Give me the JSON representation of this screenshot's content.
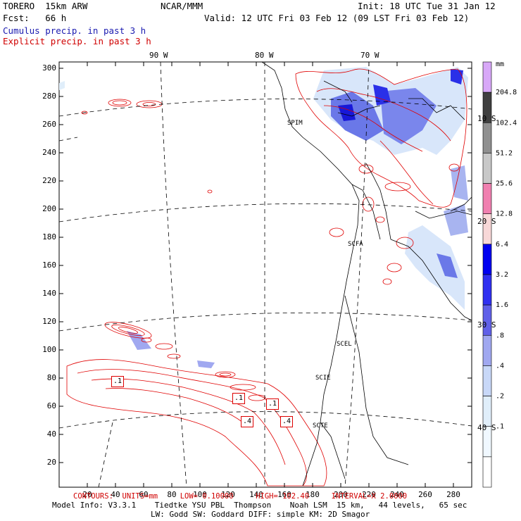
{
  "header": {
    "model": "TORERO  15km ARW",
    "org": "NCAR/MMM",
    "init": "Init: 18 UTC Tue 31 Jan 12",
    "fcst": "Fcst:   66 h",
    "valid": "Valid: 12 UTC Fri 03 Feb 12 (09 LST Fri 03 Feb 12)",
    "legend_cumulus": "Cumulus precip. in past 3 h",
    "legend_explicit": "Explicit precip. in past 3 h"
  },
  "map": {
    "lon_labels": [
      "90 W",
      "80 W",
      "70 W"
    ],
    "lat_labels": [
      "10 S",
      "20 S",
      "30 S",
      "40 S"
    ],
    "y_ticks": [
      "300",
      "280",
      "260",
      "240",
      "220",
      "200",
      "180",
      "160",
      "140",
      "120",
      "100",
      "80",
      "60",
      "40",
      "20"
    ],
    "x_ticks": [
      "20",
      "40",
      "60",
      "80",
      "100",
      "120",
      "140",
      "160",
      "180",
      "200",
      "220",
      "240",
      "260",
      "280"
    ],
    "stations": [
      "SPIM",
      "SCFA",
      "SCEL",
      "SCIE",
      "SCTE"
    ],
    "contour_labels": [
      ".1",
      ".1",
      ".1",
      ".4",
      ".4"
    ],
    "colors": {
      "contour": "#e00000",
      "border": "#000000",
      "graticule": "#000000"
    }
  },
  "colorbar": {
    "unit": "mm",
    "levels": [
      "204.8",
      "102.4",
      "51.2",
      "25.6",
      "12.8",
      "6.4",
      "3.2",
      "1.6",
      ".8",
      ".4",
      ".2",
      ".1"
    ],
    "colors": [
      "#d8a8f8",
      "#404040",
      "#909090",
      "#c8c8c8",
      "#f080b0",
      "#f8d8d8",
      "#0000f0",
      "#3030f0",
      "#6060e8",
      "#a0a8f0",
      "#c8d8f8",
      "#e0eefa",
      "#f0f8ff",
      "#ffffff"
    ]
  },
  "footer": {
    "contours": "CONTOURS:  UNITS=mm     LOW= 0.10000     HIGH= 102.40     INTERVAL=X 2.0000",
    "model_info": "Model Info: V3.3.1    Tiedtke YSU PBL  Thompson    Noah LSM  15 km,   44 levels,   65 sec",
    "model_info2": "LW: Godd SW: Goddard DIFF: simple KM: 2D Smagor"
  }
}
